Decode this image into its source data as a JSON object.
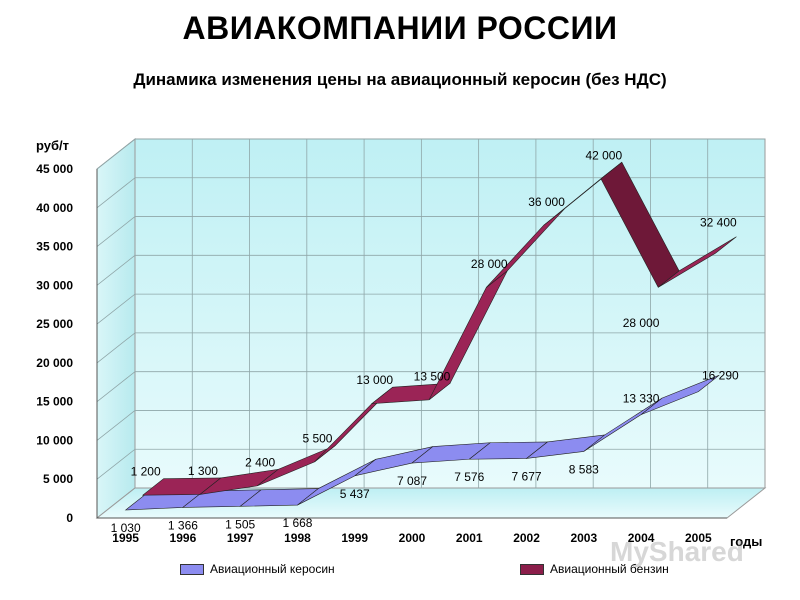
{
  "title": "АВИАКОМПАНИИ РОССИИ",
  "subtitle": "Динамика изменения цены на авиационный керосин (без НДС)",
  "watermark": "MyShared",
  "chart_data": {
    "type": "line",
    "ylabel": "руб/т",
    "xlabel": "годы",
    "ylim": [
      0,
      45000
    ],
    "yticks": [
      "0",
      "5 000",
      "10 000",
      "15 000",
      "20 000",
      "25 000",
      "30 000",
      "35 000",
      "40 000",
      "45 000"
    ],
    "categories": [
      "1995",
      "1996",
      "1997",
      "1998",
      "1999",
      "2000",
      "2001",
      "2002",
      "2003",
      "2004",
      "2005"
    ],
    "grid": true,
    "legend_position": "bottom",
    "series": [
      {
        "name": "Авиационный керосин",
        "color": "#8c8cf0",
        "values": [
          1030,
          1366,
          1505,
          1668,
          5437,
          7087,
          7576,
          7677,
          8583,
          13330,
          16290
        ],
        "labels": [
          "1 030",
          "1 366",
          "1 505",
          "1 668",
          "5 437",
          "7 087",
          "7 576",
          "7 677",
          "8 583",
          "13 330",
          "16 290"
        ]
      },
      {
        "name": "Авиационный бензин",
        "color": "#8b1e4a",
        "values": [
          1200,
          1300,
          2400,
          5500,
          13000,
          13500,
          28000,
          36000,
          42000,
          28000,
          32400
        ],
        "labels": [
          "1 200",
          "1 300",
          "2 400",
          "5 500",
          "13 000",
          "13 500",
          "28 000",
          "36 000",
          "42 000",
          "28 000",
          "32 400"
        ]
      }
    ]
  }
}
